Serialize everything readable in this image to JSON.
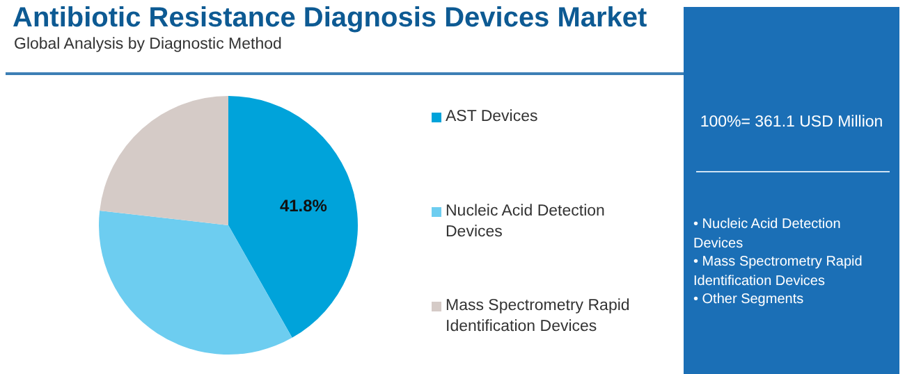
{
  "chart_data": {
    "type": "pie",
    "title": "Antibiotic Resistance Diagnosis Devices Market",
    "subtitle": "Global Analysis by Diagnostic Method",
    "categories": [
      "AST Devices",
      "Nucleic Acid Detection Devices",
      "Mass Spectrometry Rapid Identification Devices"
    ],
    "values": [
      41.8,
      35.0,
      23.2
    ],
    "colors": [
      "#00a3da",
      "#6dcdf0",
      "#d5cbc7"
    ],
    "value_labels": [
      "41.8%",
      null,
      null
    ],
    "legend": "right",
    "annotations": [
      "100%= 361.1 USD Million",
      "• Nucleic Acid Detection Devices",
      "• Mass Spectrometry Rapid Identification Devices",
      "• Other Segments"
    ]
  }
}
